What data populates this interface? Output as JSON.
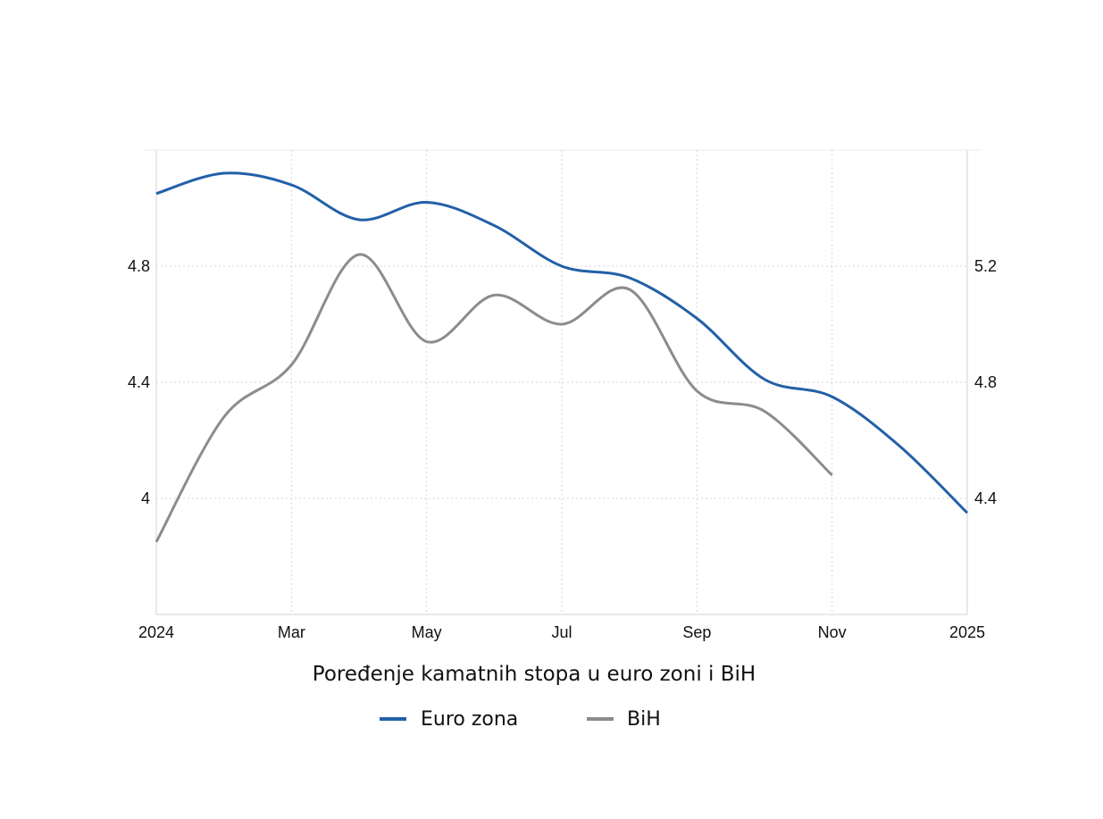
{
  "chart_data": {
    "type": "line",
    "title": "Poređenje kamatnih stopa u euro zoni i BiH",
    "x": [
      "2024-01",
      "2024-02",
      "2024-03",
      "2024-04",
      "2024-05",
      "2024-06",
      "2024-07",
      "2024-08",
      "2024-09",
      "2024-10",
      "2024-11",
      "2024-12",
      "2025-01"
    ],
    "x_tick_labels": [
      "2024",
      "Mar",
      "May",
      "Jul",
      "Sep",
      "Nov",
      "2025"
    ],
    "y_left": {
      "ticks": [
        "4",
        "4.4",
        "4.8"
      ],
      "range": [
        3.6,
        5.2
      ]
    },
    "y_right": {
      "ticks": [
        "4.4",
        "4.8",
        "5.2"
      ],
      "range": [
        4.0,
        5.6
      ]
    },
    "grid": true,
    "legend_placement": "bottom",
    "series": [
      {
        "name": "Euro zona",
        "axis": "left",
        "color": "#2360a8",
        "values": [
          5.05,
          5.12,
          5.08,
          4.96,
          5.02,
          4.94,
          4.8,
          4.76,
          4.62,
          4.41,
          4.35,
          4.18,
          3.95
        ]
      },
      {
        "name": "BiH",
        "axis": "right",
        "color": "#8c8c8c",
        "values": [
          4.25,
          4.68,
          4.86,
          5.24,
          4.94,
          5.1,
          5.0,
          5.12,
          4.77,
          4.7,
          4.48,
          null,
          null
        ]
      }
    ]
  }
}
